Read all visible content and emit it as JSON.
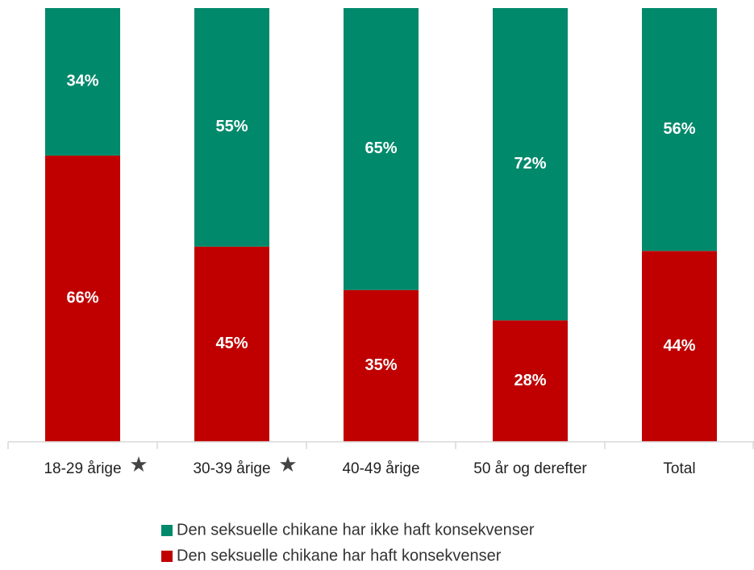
{
  "chart_data": {
    "type": "stacked_bar",
    "categories": [
      "18-29 årige",
      "30-39 årige",
      "40-49 årige",
      "50 år og derefter",
      "Total"
    ],
    "series": [
      {
        "name": "Den seksuelle chikane har ikke haft konsekvenser",
        "color": "#00896b",
        "values": [
          34,
          55,
          65,
          72,
          56
        ],
        "value_labels": [
          "34%",
          "55%",
          "65%",
          "72%",
          "56%"
        ]
      },
      {
        "name": "Den seksuelle chikane har haft konsekvenser",
        "color": "#c00000",
        "values": [
          66,
          45,
          35,
          28,
          44
        ],
        "value_labels": [
          "66%",
          "45%",
          "35%",
          "28%",
          "44%"
        ]
      }
    ],
    "ylim": [
      0,
      100
    ]
  }
}
